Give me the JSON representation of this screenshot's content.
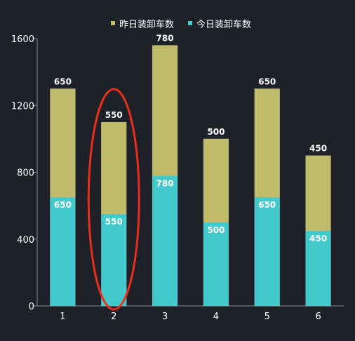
{
  "chart_data": {
    "type": "bar",
    "stacked": true,
    "categories": [
      "1",
      "2",
      "3",
      "4",
      "5",
      "6"
    ],
    "series": [
      {
        "name": "今日装卸车数",
        "values": [
          650,
          550,
          780,
          500,
          650,
          450
        ],
        "color": "#41c9cc"
      },
      {
        "name": "昨日装卸车数",
        "values": [
          650,
          550,
          780,
          500,
          650,
          450
        ],
        "color": "#bfbb68"
      }
    ],
    "legend_order": [
      "昨日装卸车数",
      "今日装卸车数"
    ],
    "legend_position": "top-center",
    "ylim": [
      0,
      1600
    ],
    "yticks": [
      0,
      400,
      800,
      1200,
      1600
    ],
    "grid": false,
    "data_labels": true,
    "annotations": [
      {
        "type": "ellipse",
        "target_category": "2",
        "color": "#e8301c"
      }
    ]
  }
}
